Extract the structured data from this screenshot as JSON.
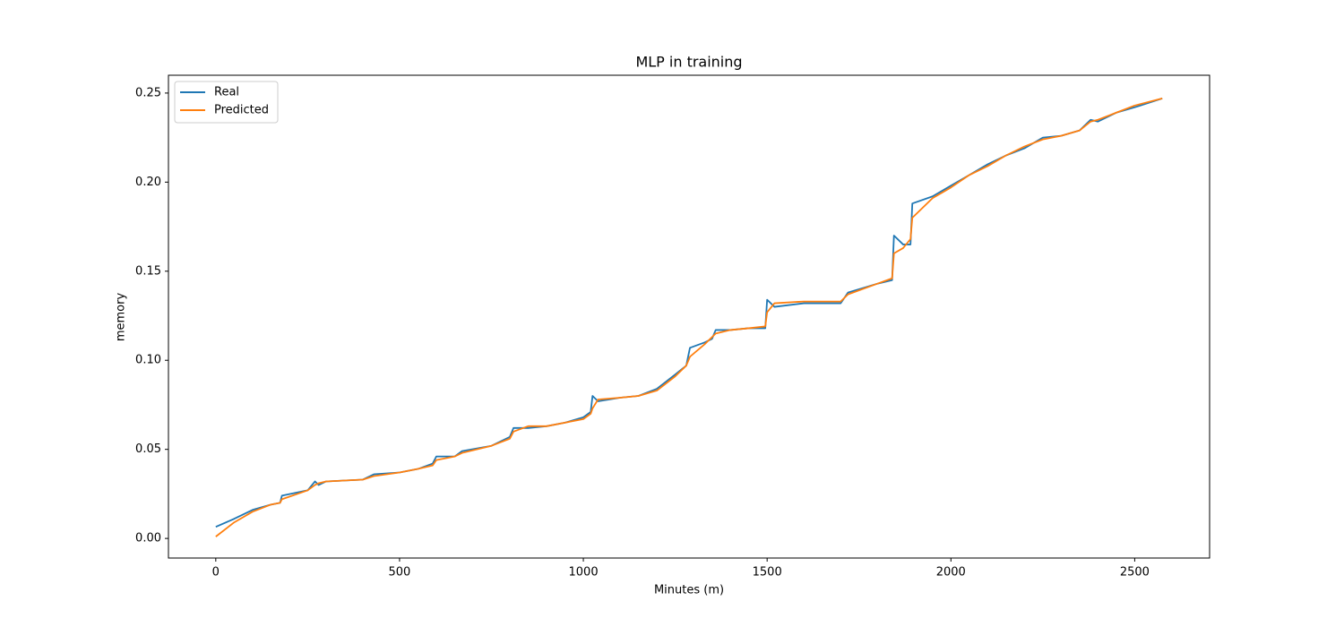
{
  "chart_data": {
    "type": "line",
    "title": "MLP in training",
    "x_label": "Minutes (m)",
    "y_label": "memory",
    "x": [
      0,
      50,
      100,
      150,
      175,
      180,
      250,
      270,
      280,
      300,
      400,
      430,
      500,
      550,
      590,
      600,
      650,
      670,
      750,
      800,
      810,
      850,
      900,
      950,
      1000,
      1020,
      1025,
      1040,
      1100,
      1150,
      1200,
      1250,
      1280,
      1290,
      1330,
      1350,
      1360,
      1400,
      1450,
      1495,
      1500,
      1520,
      1600,
      1700,
      1720,
      1800,
      1840,
      1845,
      1870,
      1890,
      1895,
      1950,
      2000,
      2050,
      2100,
      2150,
      2200,
      2250,
      2300,
      2350,
      2380,
      2400,
      2450,
      2500,
      2575
    ],
    "series": [
      {
        "name": "Real",
        "color": "#1f77b4",
        "values": [
          0.0065,
          0.011,
          0.016,
          0.019,
          0.02,
          0.024,
          0.027,
          0.032,
          0.03,
          0.032,
          0.033,
          0.036,
          0.037,
          0.039,
          0.042,
          0.046,
          0.046,
          0.049,
          0.052,
          0.057,
          0.062,
          0.062,
          0.063,
          0.065,
          0.068,
          0.071,
          0.08,
          0.077,
          0.079,
          0.08,
          0.084,
          0.092,
          0.097,
          0.107,
          0.11,
          0.112,
          0.117,
          0.117,
          0.118,
          0.118,
          0.134,
          0.13,
          0.132,
          0.132,
          0.138,
          0.143,
          0.145,
          0.17,
          0.165,
          0.165,
          0.188,
          0.192,
          0.198,
          0.204,
          0.21,
          0.215,
          0.219,
          0.225,
          0.226,
          0.229,
          0.235,
          0.234,
          0.239,
          0.242,
          0.247
        ]
      },
      {
        "name": "Predicted",
        "color": "#ff7f0e",
        "values": [
          0.001,
          0.009,
          0.015,
          0.019,
          0.02,
          0.022,
          0.027,
          0.03,
          0.031,
          0.032,
          0.033,
          0.035,
          0.037,
          0.039,
          0.041,
          0.044,
          0.046,
          0.048,
          0.052,
          0.056,
          0.06,
          0.063,
          0.063,
          0.065,
          0.067,
          0.07,
          0.073,
          0.078,
          0.079,
          0.08,
          0.083,
          0.091,
          0.097,
          0.102,
          0.109,
          0.113,
          0.115,
          0.117,
          0.118,
          0.119,
          0.127,
          0.132,
          0.133,
          0.133,
          0.137,
          0.143,
          0.146,
          0.16,
          0.163,
          0.168,
          0.18,
          0.191,
          0.197,
          0.204,
          0.209,
          0.215,
          0.22,
          0.224,
          0.226,
          0.229,
          0.234,
          0.235,
          0.239,
          0.243,
          0.247
        ]
      }
    ],
    "xlim": [
      -128.75,
      2703.75
    ],
    "ylim": [
      -0.011,
      0.26
    ],
    "xticks": [
      0,
      500,
      1000,
      1500,
      2000,
      2500
    ],
    "yticks": [
      {
        "value": 0,
        "label": "0.00"
      },
      {
        "value": 0.05,
        "label": "0.05"
      },
      {
        "value": 0.1,
        "label": "0.10"
      },
      {
        "value": 0.15,
        "label": "0.15"
      },
      {
        "value": 0.2,
        "label": "0.20"
      },
      {
        "value": 0.25,
        "label": "0.25"
      }
    ],
    "grid": false,
    "legend": "upper left"
  }
}
